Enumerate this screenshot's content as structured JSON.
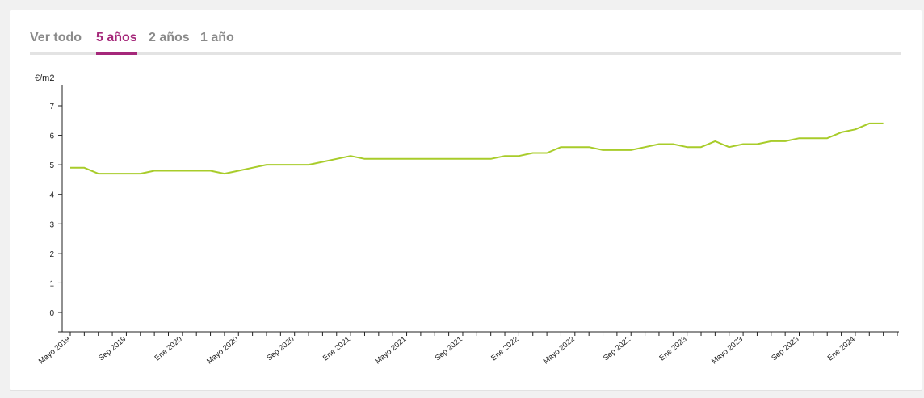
{
  "tabs": [
    {
      "label": "Ver todo",
      "active": false
    },
    {
      "label": "5 años",
      "active": true
    },
    {
      "label": "2 años",
      "active": false
    },
    {
      "label": "1 año",
      "active": false
    }
  ],
  "colors": {
    "line": "#a8cc2a",
    "accent": "#a5287a",
    "tab_inactive": "#8a8a8a"
  },
  "chart_data": {
    "type": "line",
    "ylabel": "€/m2",
    "ylim": [
      0,
      7
    ],
    "yticks": [
      0,
      1,
      2,
      3,
      4,
      5,
      6,
      7
    ],
    "grid": false,
    "x_start": "2019-05",
    "x_end": "2024-04",
    "xtick_labels": [
      "Mayo 2019",
      "Sep 2019",
      "Ene 2020",
      "Mayo 2020",
      "Sep 2020",
      "Ene 2021",
      "Mayo 2021",
      "Sep 2021",
      "Ene 2022",
      "Mayo 2022",
      "Sep 2022",
      "Ene 2023",
      "Mayo 2023",
      "Sep 2023",
      "Ene 2024"
    ],
    "series": [
      {
        "x": [
          "2019-05",
          "2019-06",
          "2019-07",
          "2019-08",
          "2019-09",
          "2019-10",
          "2019-11",
          "2019-12",
          "2020-01",
          "2020-02",
          "2020-03",
          "2020-04",
          "2020-05",
          "2020-06",
          "2020-07",
          "2020-08",
          "2020-09",
          "2020-10",
          "2020-11",
          "2020-12",
          "2021-01",
          "2021-02",
          "2021-03",
          "2021-04",
          "2021-05",
          "2021-06",
          "2021-07",
          "2021-08",
          "2021-09",
          "2021-10",
          "2021-11",
          "2021-12",
          "2022-01",
          "2022-02",
          "2022-03",
          "2022-04",
          "2022-05",
          "2022-06",
          "2022-07",
          "2022-08",
          "2022-09",
          "2022-10",
          "2022-11",
          "2022-12",
          "2023-01",
          "2023-02",
          "2023-03",
          "2023-04",
          "2023-05",
          "2023-06",
          "2023-07",
          "2023-08",
          "2023-09",
          "2023-10",
          "2023-11",
          "2023-12",
          "2024-01",
          "2024-02",
          "2024-03"
        ],
        "values": [
          4.9,
          4.9,
          4.7,
          4.7,
          4.7,
          4.7,
          4.8,
          4.8,
          4.8,
          4.8,
          4.8,
          4.7,
          4.8,
          4.9,
          5.0,
          5.0,
          5.0,
          5.0,
          5.1,
          5.2,
          5.3,
          5.2,
          5.2,
          5.2,
          5.2,
          5.2,
          5.2,
          5.2,
          5.2,
          5.2,
          5.2,
          5.3,
          5.3,
          5.4,
          5.4,
          5.6,
          5.6,
          5.6,
          5.5,
          5.5,
          5.5,
          5.6,
          5.7,
          5.7,
          5.6,
          5.6,
          5.8,
          5.6,
          5.7,
          5.7,
          5.8,
          5.8,
          5.9,
          5.9,
          5.9,
          6.1,
          6.2,
          6.4,
          6.4
        ]
      }
    ]
  }
}
